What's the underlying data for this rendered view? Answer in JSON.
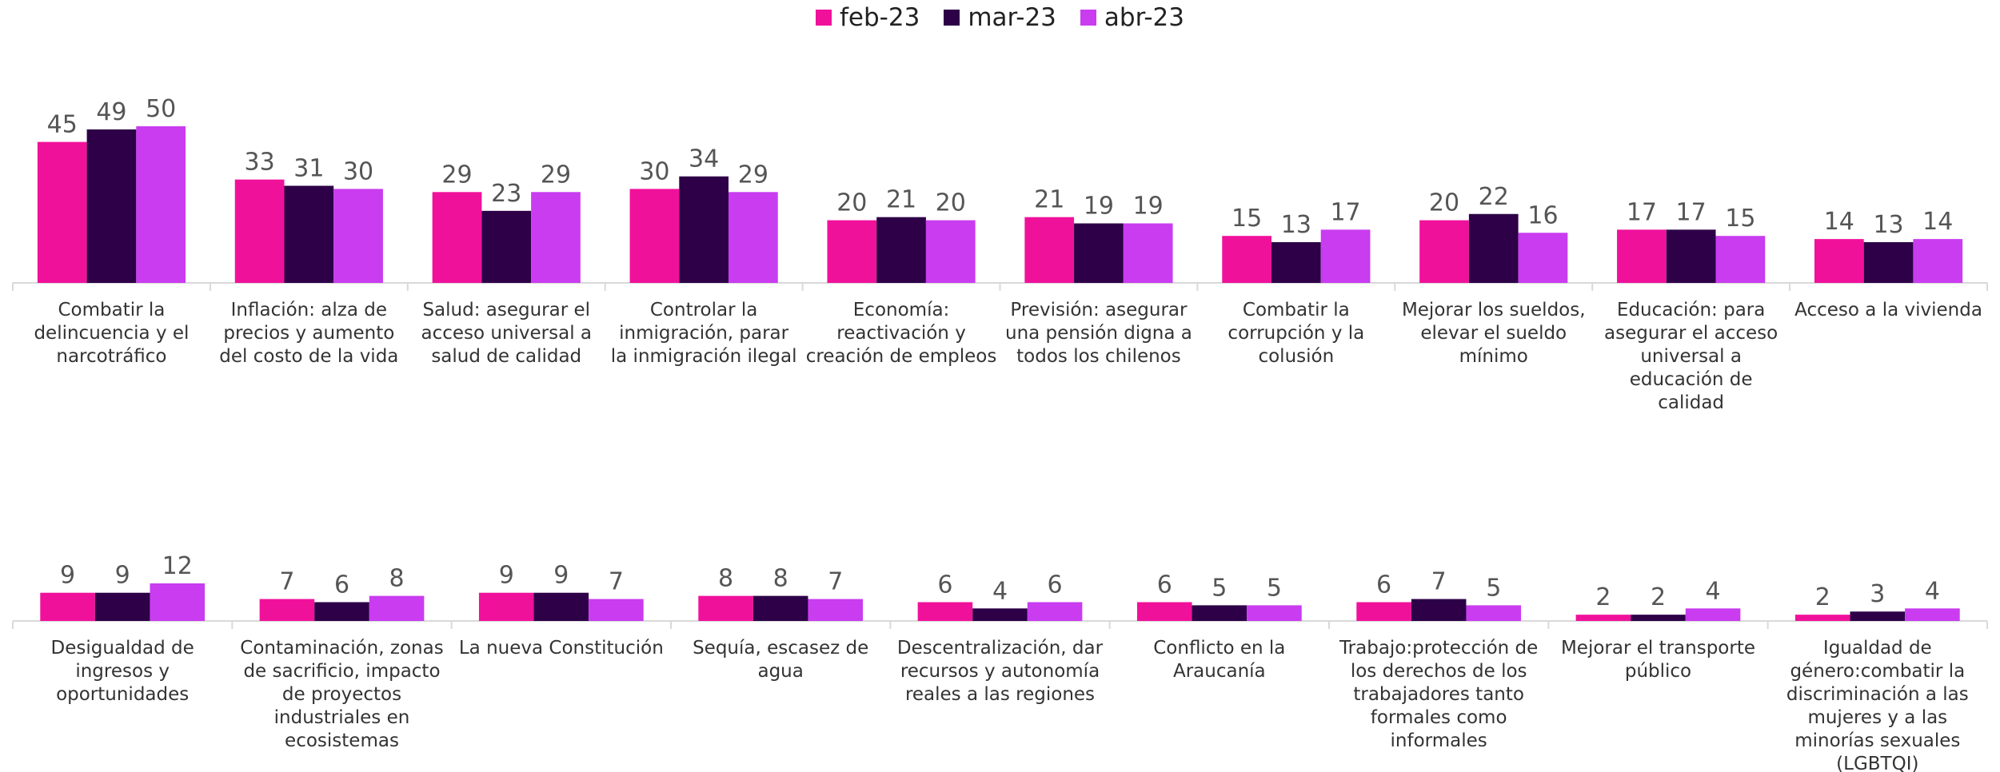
{
  "chart_data": [
    {
      "type": "bar",
      "categories": [
        "Combatir la delincuencia y el narcotráfico",
        "Inflación: alza de precios y aumento del costo de la vida",
        "Salud: asegurar el acceso universal a salud de calidad",
        "Controlar la inmigración, parar la inmigración ilegal",
        "Economía: reactivación y creación de empleos",
        "Previsión: asegurar una pensión digna a todos los chilenos",
        "Combatir la corrupción y la colusión",
        "Mejorar los sueldos, elevar el sueldo mínimo",
        "Educación: para asegurar el acceso universal a educación de calidad",
        "Acceso a la vivienda"
      ],
      "series": [
        {
          "name": "feb-23",
          "color": "#f0119b",
          "values": [
            45,
            33,
            29,
            30,
            20,
            21,
            15,
            20,
            17,
            14
          ]
        },
        {
          "name": "mar-23",
          "color": "#2d0047",
          "values": [
            49,
            31,
            23,
            34,
            21,
            19,
            13,
            22,
            17,
            13
          ]
        },
        {
          "name": "abr-23",
          "color": "#c93cf0",
          "values": [
            50,
            30,
            29,
            29,
            20,
            19,
            17,
            16,
            15,
            14
          ]
        }
      ],
      "ylim": [
        0,
        50
      ]
    },
    {
      "type": "bar",
      "categories": [
        "Desigualdad de ingresos y oportunidades",
        "Contaminación, zonas de sacrificio, impacto de proyectos industriales en ecosistemas",
        "La nueva Constitución",
        "Sequía, escasez de agua",
        "Descentralización, dar recursos y autonomía reales a las regiones",
        "Conflicto en la Araucanía",
        "Trabajo:protección de los derechos de los trabajadores tanto formales como informales",
        "Mejorar el transporte público",
        "Igualdad de género:combatir la discriminación a las mujeres y a las minorías sexuales (LGBTQI)"
      ],
      "series": [
        {
          "name": "feb-23",
          "color": "#f0119b",
          "values": [
            9,
            7,
            9,
            8,
            6,
            6,
            6,
            2,
            2
          ]
        },
        {
          "name": "mar-23",
          "color": "#2d0047",
          "values": [
            9,
            6,
            9,
            8,
            4,
            5,
            7,
            2,
            3
          ]
        },
        {
          "name": "abr-23",
          "color": "#c93cf0",
          "values": [
            12,
            8,
            7,
            7,
            6,
            5,
            5,
            4,
            4
          ]
        }
      ],
      "ylim": [
        0,
        50
      ]
    }
  ]
}
